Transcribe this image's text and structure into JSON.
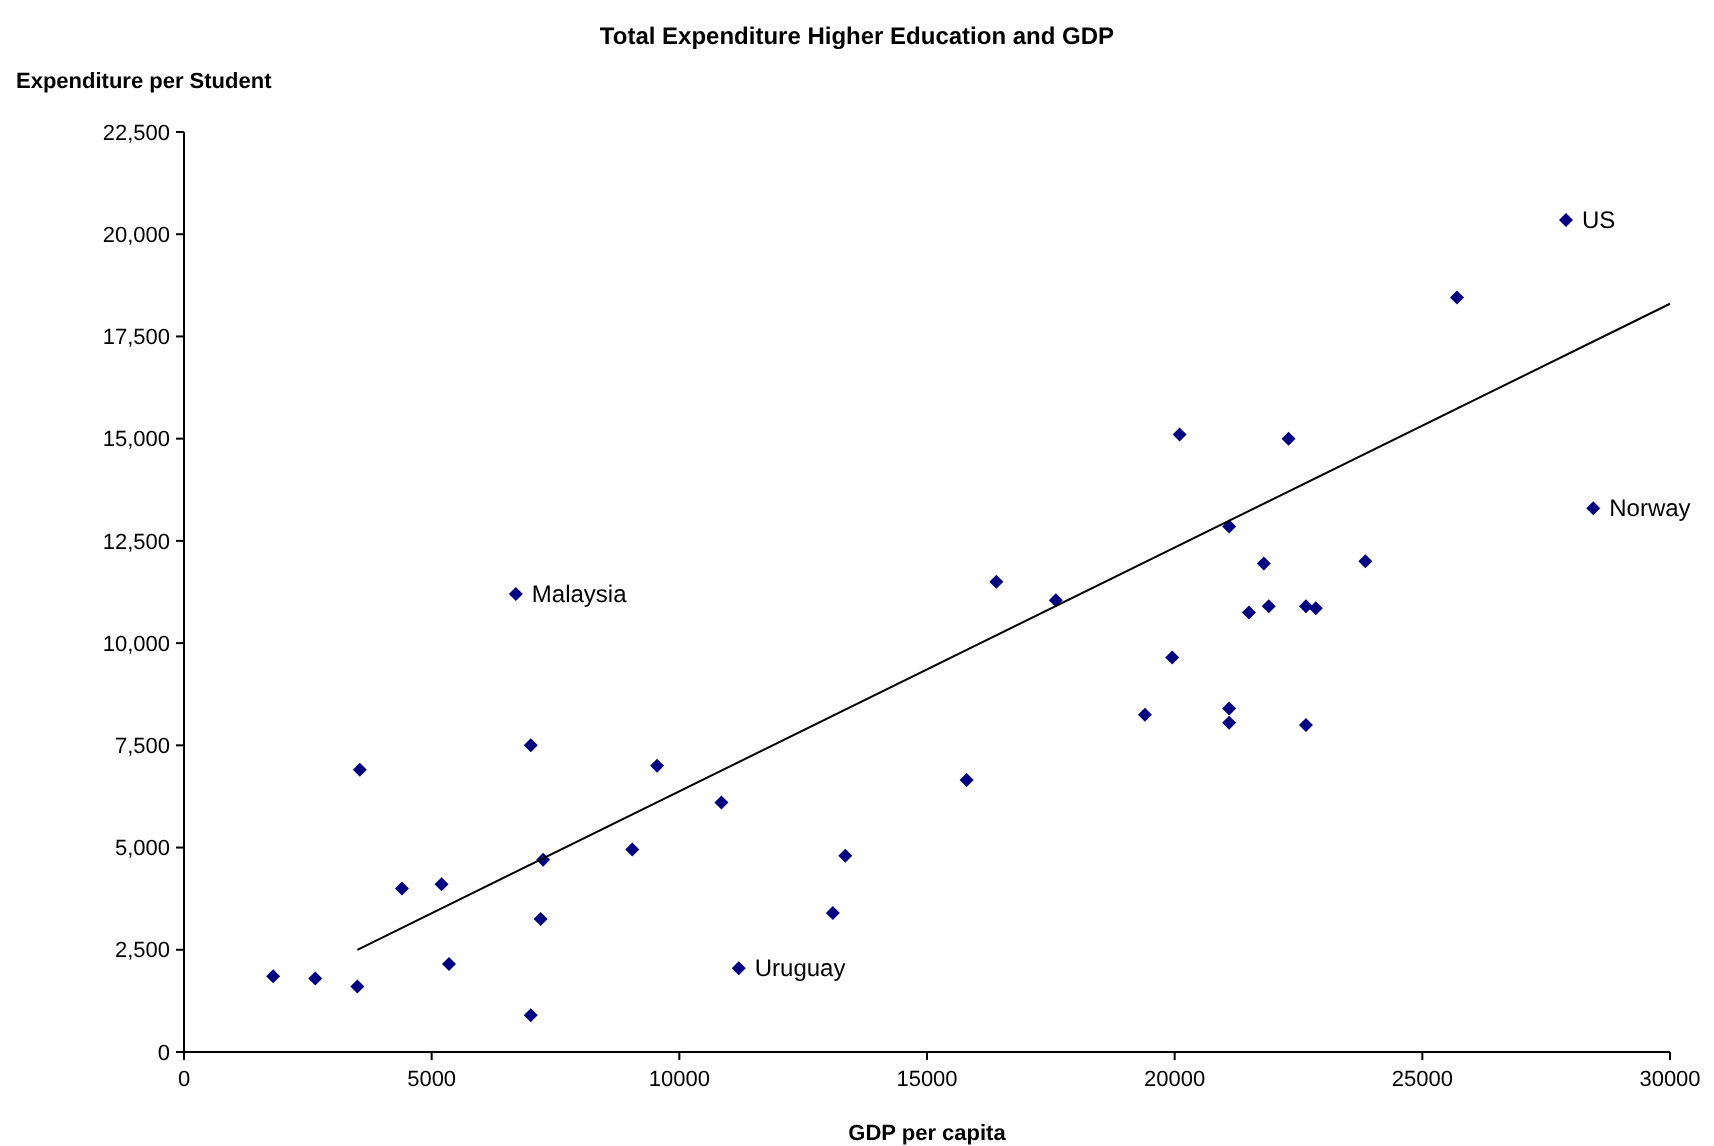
{
  "chart_data": {
    "type": "scatter",
    "title": "Total Expenditure Higher Education and GDP",
    "xlabel": "GDP per capita",
    "ylabel": "Expenditure per Student",
    "xlim": [
      0,
      30000
    ],
    "xticks": [
      0,
      5000,
      10000,
      15000,
      20000,
      25000,
      30000
    ],
    "ylim": [
      0,
      22500
    ],
    "yticks": [
      0,
      {
        "value": 2500,
        "label": "2,500"
      },
      {
        "value": 5000,
        "label": "5,000"
      },
      {
        "value": 7500,
        "label": "7,500"
      },
      {
        "value": 10000,
        "label": "10,000"
      },
      {
        "value": 12500,
        "label": "12,500"
      },
      {
        "value": 15000,
        "label": "15,000"
      },
      {
        "value": 17500,
        "label": "17,500"
      },
      {
        "value": 20000,
        "label": "20,000"
      },
      {
        "value": 22500,
        "label": "22,500"
      }
    ],
    "grid": false,
    "series": [
      {
        "color": "#000080",
        "marker": "diamond",
        "x": [
          1800,
          2650,
          3500,
          3550,
          4400,
          5200,
          5350,
          6700,
          7000,
          7000,
          7200,
          7250,
          9050,
          9550,
          10850,
          11200,
          13100,
          13350,
          15800,
          16400,
          17600,
          19400,
          19950,
          20100,
          21100,
          21100,
          21100,
          21500,
          21800,
          21900,
          22300,
          22650,
          22650,
          22850,
          23850,
          25700,
          27900,
          28450
        ],
        "values": [
          1850,
          1800,
          1600,
          6900,
          4000,
          4100,
          2150,
          11200,
          7500,
          900,
          3250,
          4700,
          4950,
          7000,
          6100,
          2050,
          3400,
          4800,
          6650,
          11500,
          11050,
          8250,
          9650,
          15100,
          12850,
          8400,
          8050,
          10750,
          11950,
          10900,
          15000,
          10900,
          8000,
          10850,
          12000,
          18450,
          20350,
          13300
        ]
      },
      {
        "type": "line",
        "color": "#000000",
        "marker": "none",
        "line_style": "solid",
        "x": [
          3500,
          30000
        ],
        "values": [
          2500,
          18300
        ]
      }
    ],
    "annotations": [
      {
        "text": "Malaysia",
        "x": 6700,
        "y": 11200
      },
      {
        "text": "Uruguay",
        "x": 11200,
        "y": 2050
      },
      {
        "text": "US",
        "x": 27900,
        "y": 20350
      },
      {
        "text": "Norway",
        "x": 28450,
        "y": 13300
      }
    ]
  }
}
